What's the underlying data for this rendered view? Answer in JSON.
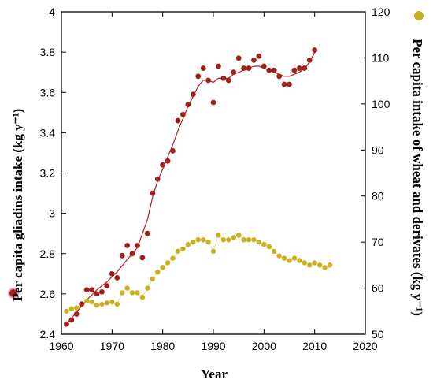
{
  "chart_data": {
    "type": "scatter",
    "xlabel": "Year",
    "ylabel_left": "Per capita gliadins intake (kg y⁻¹)",
    "ylabel_right": "Per capita intake of wheat and derivates (kg y⁻¹)",
    "xlim": [
      1960,
      2020
    ],
    "ylim_left": [
      2.4,
      4.0
    ],
    "ylim_right": [
      50,
      120
    ],
    "x_ticks": [
      1960,
      1970,
      1980,
      1990,
      2000,
      2010,
      2020
    ],
    "y_ticks_left": [
      "2.4",
      "2.6",
      "2.8",
      "3",
      "3.2",
      "3.4",
      "3.6",
      "3.8",
      "4"
    ],
    "y_ticks_right": [
      "50",
      "60",
      "70",
      "80",
      "90",
      "100",
      "110",
      "120"
    ],
    "grid": false,
    "colors": {
      "gliadins": "#a0201a",
      "wheat": "#c9b020",
      "smooth": "#b42020"
    },
    "series": [
      {
        "name": "Per capita gliadins intake",
        "axis": "left",
        "marker": "dot",
        "x": [
          1961,
          1962,
          1963,
          1964,
          1965,
          1966,
          1967,
          1968,
          1969,
          1970,
          1971,
          1972,
          1973,
          1974,
          1975,
          1976,
          1977,
          1978,
          1979,
          1980,
          1981,
          1982,
          1983,
          1984,
          1985,
          1986,
          1987,
          1988,
          1989,
          1990,
          1991,
          1992,
          1993,
          1994,
          1995,
          1996,
          1997,
          1998,
          1999,
          2000,
          2001,
          2002,
          2003,
          2004,
          2005,
          2006,
          2007,
          2008,
          2009,
          2010
        ],
        "y": [
          2.45,
          2.47,
          2.5,
          2.55,
          2.62,
          2.62,
          2.6,
          2.61,
          2.64,
          2.7,
          2.68,
          2.79,
          2.84,
          2.8,
          2.84,
          2.78,
          2.9,
          3.1,
          3.17,
          3.24,
          3.26,
          3.31,
          3.46,
          3.49,
          3.54,
          3.59,
          3.68,
          3.72,
          3.66,
          3.55,
          3.73,
          3.67,
          3.66,
          3.7,
          3.77,
          3.72,
          3.72,
          3.76,
          3.78,
          3.73,
          3.71,
          3.71,
          3.68,
          3.64,
          3.64,
          3.71,
          3.72,
          3.72,
          3.76,
          3.81
        ]
      },
      {
        "name": "Per capita intake of wheat and derivates",
        "axis": "right",
        "marker": "dot",
        "x": [
          1961,
          1962,
          1963,
          1964,
          1965,
          1966,
          1967,
          1968,
          1969,
          1970,
          1971,
          1972,
          1973,
          1974,
          1975,
          1976,
          1977,
          1978,
          1979,
          1980,
          1981,
          1982,
          1983,
          1984,
          1985,
          1986,
          1987,
          1988,
          1989,
          1990,
          1991,
          1992,
          1993,
          1994,
          1995,
          1996,
          1997,
          1998,
          1999,
          2000,
          2001,
          2002,
          2003,
          2004,
          2005,
          2006,
          2007,
          2008,
          2009,
          2010,
          2011,
          2012,
          2013
        ],
        "y": [
          55.0,
          55.5,
          55.7,
          56.5,
          57.2,
          57.0,
          56.3,
          56.5,
          56.8,
          57.0,
          56.5,
          59.0,
          60.0,
          59.0,
          59.0,
          58.0,
          60.0,
          62.0,
          63.5,
          64.5,
          65.5,
          66.5,
          68.0,
          68.5,
          69.5,
          70.0,
          70.5,
          70.5,
          70.0,
          68.0,
          71.5,
          70.5,
          70.5,
          71.0,
          71.5,
          70.5,
          70.5,
          70.5,
          70.0,
          69.5,
          69.0,
          68.0,
          67.0,
          66.5,
          66.0,
          66.5,
          66.0,
          65.5,
          65.0,
          65.5,
          65.0,
          64.5,
          65.0
        ]
      }
    ],
    "smooth_line": {
      "name": "",
      "axis": "left",
      "x": [
        1961,
        1963,
        1965,
        1967,
        1969,
        1971,
        1973,
        1975,
        1977,
        1978,
        1979,
        1980,
        1981,
        1982,
        1983,
        1984,
        1985,
        1986,
        1987,
        1988,
        1989,
        1990,
        1991,
        1992,
        1993,
        1994,
        1995,
        1996,
        1997,
        1998,
        1999,
        2000,
        2001,
        2002,
        2003,
        2004,
        2005,
        2006,
        2007,
        2008,
        2009,
        2010
      ],
      "y": [
        2.45,
        2.51,
        2.57,
        2.62,
        2.66,
        2.71,
        2.77,
        2.83,
        2.97,
        3.08,
        3.16,
        3.22,
        3.28,
        3.34,
        3.41,
        3.47,
        3.53,
        3.58,
        3.63,
        3.66,
        3.66,
        3.65,
        3.67,
        3.67,
        3.67,
        3.69,
        3.7,
        3.71,
        3.72,
        3.73,
        3.73,
        3.72,
        3.71,
        3.7,
        3.69,
        3.68,
        3.68,
        3.69,
        3.7,
        3.72,
        3.75,
        3.8
      ]
    }
  }
}
